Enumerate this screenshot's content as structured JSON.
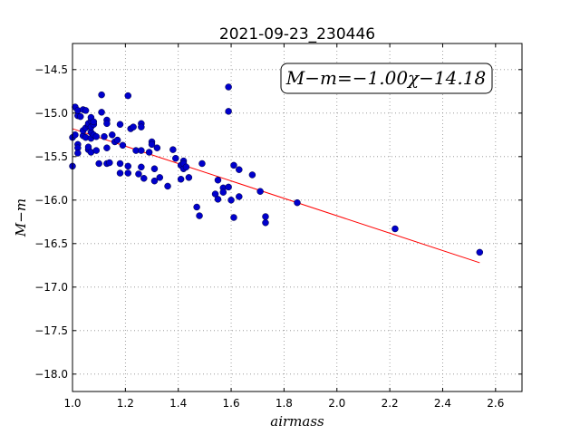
{
  "chart_data": {
    "type": "scatter",
    "title": "2021-09-23_230446",
    "xlabel": "airmass",
    "ylabel": "M−m",
    "xlim": [
      1.0,
      2.7
    ],
    "ylim": [
      -18.2,
      -14.2
    ],
    "xticks": [
      1.0,
      1.2,
      1.4,
      1.6,
      1.8,
      2.0,
      2.2,
      2.4,
      2.6
    ],
    "xtick_labels": [
      "1.0",
      "1.2",
      "1.4",
      "1.6",
      "1.8",
      "2.0",
      "2.2",
      "2.4",
      "2.6"
    ],
    "yticks": [
      -14.5,
      -15.0,
      -15.5,
      -16.0,
      -16.5,
      -17.0,
      -17.5,
      -18.0
    ],
    "ytick_labels": [
      "−14.5",
      "−15.0",
      "−15.5",
      "−16.0",
      "−16.5",
      "−17.0",
      "−17.5",
      "−18.0"
    ],
    "grid": true,
    "annotation": "M−m=−1.00χ−14.18",
    "annotation_position": "top-right",
    "series": [
      {
        "kind": "points",
        "color": "#0000cc",
        "points": [
          [
            1.0,
            -15.61
          ],
          [
            1.0,
            -15.28
          ],
          [
            1.01,
            -14.93
          ],
          [
            1.01,
            -15.25
          ],
          [
            1.02,
            -15.36
          ],
          [
            1.02,
            -15.4
          ],
          [
            1.02,
            -15.46
          ],
          [
            1.02,
            -15.03
          ],
          [
            1.02,
            -14.97
          ],
          [
            1.03,
            -15.04
          ],
          [
            1.04,
            -14.96
          ],
          [
            1.04,
            -15.26
          ],
          [
            1.04,
            -15.2
          ],
          [
            1.05,
            -15.17
          ],
          [
            1.05,
            -14.97
          ],
          [
            1.05,
            -15.28
          ],
          [
            1.06,
            -15.14
          ],
          [
            1.06,
            -15.12
          ],
          [
            1.06,
            -15.42
          ],
          [
            1.06,
            -15.39
          ],
          [
            1.07,
            -15.09
          ],
          [
            1.07,
            -15.22
          ],
          [
            1.07,
            -15.29
          ],
          [
            1.07,
            -15.45
          ],
          [
            1.07,
            -15.16
          ],
          [
            1.07,
            -15.05
          ],
          [
            1.08,
            -15.25
          ],
          [
            1.08,
            -15.13
          ],
          [
            1.08,
            -15.1
          ],
          [
            1.09,
            -15.27
          ],
          [
            1.09,
            -15.43
          ],
          [
            1.1,
            -15.58
          ],
          [
            1.11,
            -14.79
          ],
          [
            1.11,
            -14.99
          ],
          [
            1.12,
            -15.27
          ],
          [
            1.13,
            -15.08
          ],
          [
            1.13,
            -15.12
          ],
          [
            1.13,
            -15.4
          ],
          [
            1.13,
            -15.58
          ],
          [
            1.14,
            -15.57
          ],
          [
            1.15,
            -15.25
          ],
          [
            1.16,
            -15.33
          ],
          [
            1.17,
            -15.31
          ],
          [
            1.18,
            -15.13
          ],
          [
            1.18,
            -15.58
          ],
          [
            1.18,
            -15.69
          ],
          [
            1.19,
            -15.37
          ],
          [
            1.21,
            -15.61
          ],
          [
            1.21,
            -15.69
          ],
          [
            1.21,
            -14.8
          ],
          [
            1.22,
            -15.18
          ],
          [
            1.23,
            -15.16
          ],
          [
            1.24,
            -15.43
          ],
          [
            1.25,
            -15.7
          ],
          [
            1.26,
            -15.43
          ],
          [
            1.26,
            -15.12
          ],
          [
            1.26,
            -15.16
          ],
          [
            1.26,
            -15.62
          ],
          [
            1.27,
            -15.75
          ],
          [
            1.29,
            -15.45
          ],
          [
            1.3,
            -15.33
          ],
          [
            1.3,
            -15.36
          ],
          [
            1.31,
            -15.64
          ],
          [
            1.31,
            -15.78
          ],
          [
            1.32,
            -15.4
          ],
          [
            1.33,
            -15.74
          ],
          [
            1.36,
            -15.84
          ],
          [
            1.38,
            -15.42
          ],
          [
            1.39,
            -15.52
          ],
          [
            1.41,
            -15.6
          ],
          [
            1.41,
            -15.76
          ],
          [
            1.42,
            -15.55
          ],
          [
            1.42,
            -15.64
          ],
          [
            1.42,
            -15.58
          ],
          [
            1.43,
            -15.62
          ],
          [
            1.44,
            -15.74
          ],
          [
            1.47,
            -16.08
          ],
          [
            1.48,
            -16.18
          ],
          [
            1.49,
            -15.58
          ],
          [
            1.54,
            -15.93
          ],
          [
            1.55,
            -15.77
          ],
          [
            1.55,
            -15.99
          ],
          [
            1.57,
            -15.86
          ],
          [
            1.57,
            -15.91
          ],
          [
            1.59,
            -14.7
          ],
          [
            1.59,
            -14.98
          ],
          [
            1.59,
            -15.85
          ],
          [
            1.6,
            -16.0
          ],
          [
            1.61,
            -15.6
          ],
          [
            1.61,
            -16.2
          ],
          [
            1.63,
            -15.65
          ],
          [
            1.63,
            -15.96
          ],
          [
            1.68,
            -15.71
          ],
          [
            1.71,
            -15.9
          ],
          [
            1.73,
            -16.19
          ],
          [
            1.73,
            -16.26
          ],
          [
            1.85,
            -16.03
          ],
          [
            2.22,
            -16.33
          ],
          [
            2.54,
            -16.6
          ]
        ]
      },
      {
        "kind": "line",
        "color": "#ff0000",
        "slope": -1.0,
        "intercept": -14.18,
        "x_range": [
          1.0,
          2.54
        ]
      }
    ]
  }
}
